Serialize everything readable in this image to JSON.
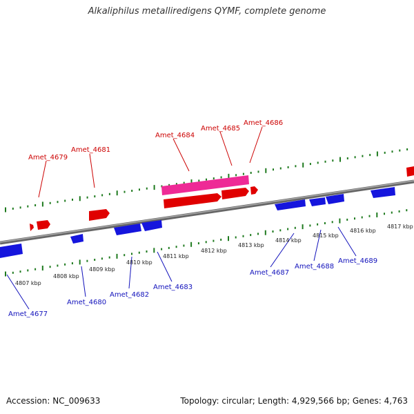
{
  "title": "Alkaliphilus metalliredigens QYMF, complete genome",
  "footer": {
    "accession": "Accession: NC_009633",
    "topology": "Topology: circular; Length: 4,929,566 bp; Genes: 4,763"
  },
  "colors": {
    "backbone": "#888888",
    "tick": "#1e7a1e",
    "forward_gene": "#ee0000",
    "forward_label": "#cc0000",
    "reverse_gene": "#1111dd",
    "reverse_label": "#1111bb",
    "highlight_gene": "#ee2a96"
  },
  "scale_labels": [
    "4807 kbp",
    "4808 kbp",
    "4809 kbp",
    "4810 kbp",
    "4811 kbp",
    "4812 kbp",
    "4813 kbp",
    "4814 kbp",
    "4815 kbp",
    "4816 kbp",
    "4817 kbp"
  ],
  "gene_labels": {
    "forward": [
      "Amet_4679",
      "Amet_4681",
      "Amet_4684",
      "Amet_4685",
      "Amet_4686"
    ],
    "reverse": [
      "Amet_4677",
      "Amet_4680",
      "Amet_4682",
      "Amet_4683",
      "Amet_4687",
      "Amet_4688",
      "Amet_4689"
    ]
  }
}
